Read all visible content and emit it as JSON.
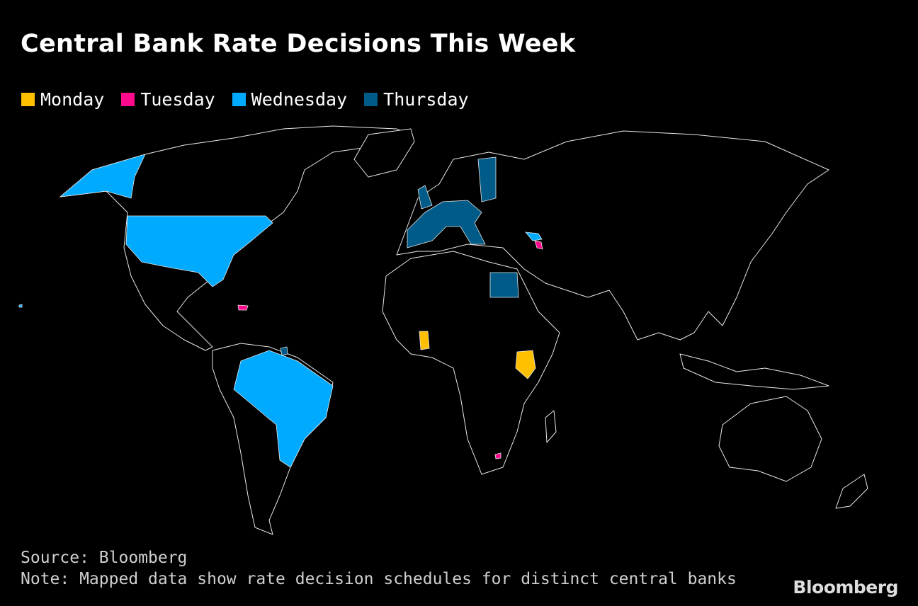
{
  "title": "Central Bank Rate Decisions This Week",
  "legend": [
    {
      "label": "Monday",
      "color": "#ffc000"
    },
    {
      "label": "Tuesday",
      "color": "#ff0a8c"
    },
    {
      "label": "Wednesday",
      "color": "#00aaff"
    },
    {
      "label": "Thursday",
      "color": "#005b88"
    }
  ],
  "chart_data": {
    "type": "choropleth",
    "title": "Central Bank Rate Decisions This Week",
    "categories": [
      "Monday",
      "Tuesday",
      "Wednesday",
      "Thursday"
    ],
    "regions": [
      {
        "region": "United States",
        "day": "Wednesday"
      },
      {
        "region": "Brazil",
        "day": "Wednesday"
      },
      {
        "region": "Georgia",
        "day": "Wednesday"
      },
      {
        "region": "Eurozone",
        "day": "Thursday"
      },
      {
        "region": "United Kingdom",
        "day": "Thursday"
      },
      {
        "region": "Egypt",
        "day": "Thursday"
      },
      {
        "region": "Ghana",
        "day": "Monday"
      },
      {
        "region": "Kenya",
        "day": "Monday"
      },
      {
        "region": "Dominican Republic",
        "day": "Tuesday"
      },
      {
        "region": "Armenia",
        "day": "Tuesday"
      },
      {
        "region": "Lesotho",
        "day": "Tuesday"
      }
    ]
  },
  "footer": {
    "source": "Source: Bloomberg",
    "note": "Note: Mapped data show rate decision schedules for distinct central banks"
  },
  "brand": "Bloomberg"
}
